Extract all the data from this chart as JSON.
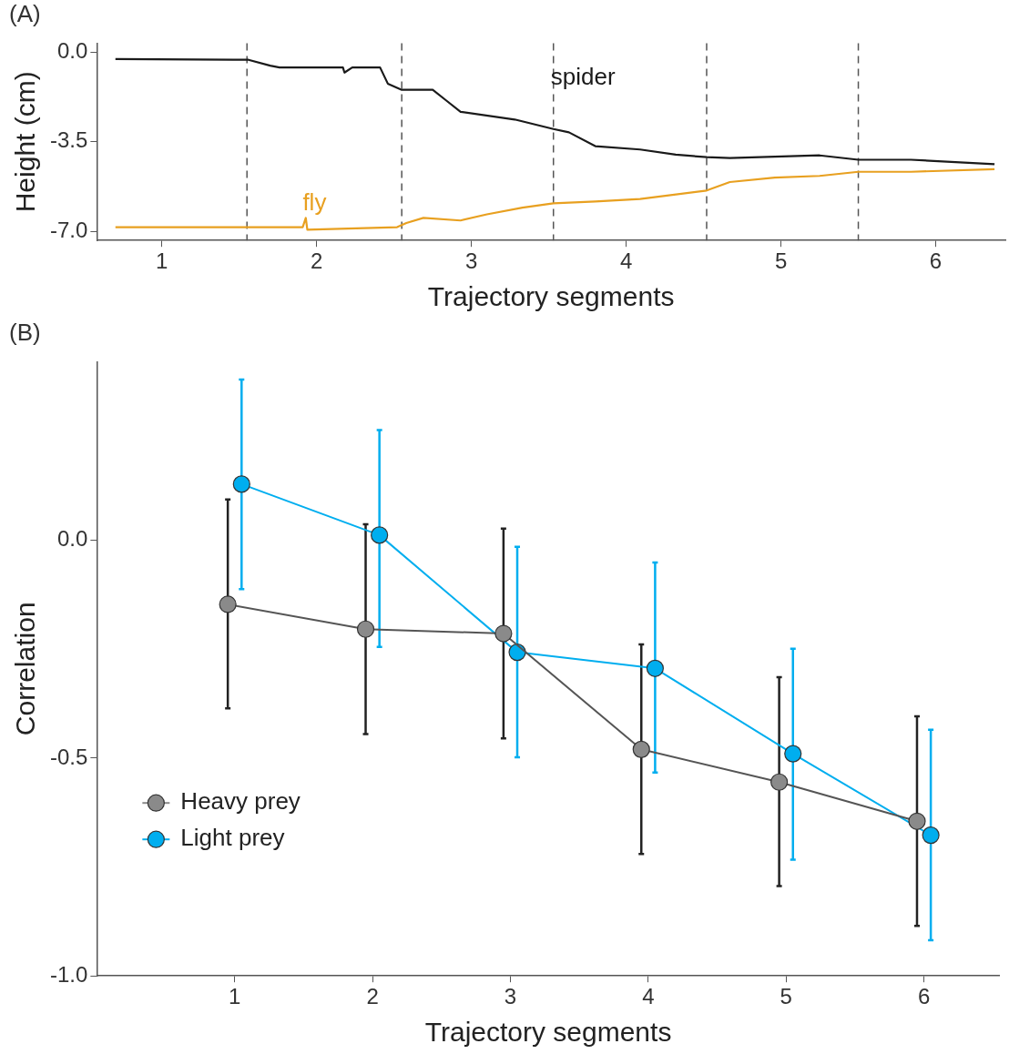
{
  "chart_data": [
    {
      "type": "line",
      "xlabel": "Trajectory segments",
      "ylabel": "Height (cm)",
      "annotations": [
        "(A)"
      ],
      "legend": false,
      "grid": false,
      "marker": "none",
      "xlim": [
        0.58,
        6.45
      ],
      "xticks": [
        1,
        2,
        3,
        4,
        5,
        6
      ],
      "ylim": [
        -7.35,
        0.35
      ],
      "yticks": [
        {
          "value": 0,
          "label": "0.0"
        },
        {
          "value": -3.5,
          "label": "-3.5"
        },
        {
          "value": -7,
          "label": "-7.0"
        }
      ],
      "ref_lines": [
        {
          "axis": "x",
          "value": 1.55,
          "color": "#555555",
          "line_style": "dashed"
        },
        {
          "axis": "x",
          "value": 2.55,
          "color": "#555555",
          "line_style": "dashed"
        },
        {
          "axis": "x",
          "value": 3.53,
          "color": "#555555",
          "line_style": "dashed"
        },
        {
          "axis": "x",
          "value": 4.52,
          "color": "#555555",
          "line_style": "dashed"
        },
        {
          "axis": "x",
          "value": 5.5,
          "color": "#555555",
          "line_style": "dashed"
        }
      ],
      "series": [
        {
          "name": "spider",
          "color": "#1a1a1a",
          "x": [
            0.7,
            1.56,
            1.7,
            1.76,
            2.17,
            2.18,
            2.23,
            2.41,
            2.46,
            2.55,
            2.75,
            2.84,
            2.93,
            3.28,
            3.53,
            3.63,
            3.8,
            4.09,
            4.32,
            4.52,
            4.67,
            5.25,
            5.5,
            5.84,
            6.38
          ],
          "values": [
            -0.27,
            -0.3,
            -0.53,
            -0.6,
            -0.6,
            -0.8,
            -0.6,
            -0.6,
            -1.23,
            -1.47,
            -1.47,
            -1.9,
            -2.33,
            -2.63,
            -3.0,
            -3.13,
            -3.67,
            -3.8,
            -4.0,
            -4.1,
            -4.13,
            -4.03,
            -4.2,
            -4.2,
            -4.37
          ]
        },
        {
          "name": "fly",
          "color": "#e8a020",
          "x": [
            0.7,
            1.56,
            1.91,
            1.93,
            1.94,
            2.52,
            2.58,
            2.69,
            2.93,
            3.1,
            3.33,
            3.53,
            3.8,
            4.09,
            4.52,
            4.67,
            4.96,
            5.25,
            5.5,
            5.84,
            6.38
          ],
          "values": [
            -6.83,
            -6.83,
            -6.83,
            -6.47,
            -6.93,
            -6.83,
            -6.67,
            -6.47,
            -6.57,
            -6.33,
            -6.07,
            -5.9,
            -5.83,
            -5.73,
            -5.4,
            -5.07,
            -4.9,
            -4.83,
            -4.67,
            -4.67,
            -4.57
          ]
        }
      ]
    },
    {
      "type": "line",
      "xlabel": "Trajectory segments",
      "ylabel": "Correlation",
      "annotations": [
        "(B)"
      ],
      "legend": "bottom left",
      "grid": false,
      "marker": "circle",
      "xlim": [
        0,
        6.55
      ],
      "xticks": [
        1,
        2,
        3,
        4,
        5,
        6
      ],
      "ylim": [
        -1,
        0.41
      ],
      "yticks": [
        {
          "value": 0,
          "label": "0.0"
        },
        {
          "value": -0.5,
          "label": "-0.5"
        },
        {
          "value": -1,
          "label": "-1.0"
        }
      ],
      "series": [
        {
          "name": "Heavy prey",
          "color": "#8a8a8a",
          "x": [
            0.95,
            1.95,
            2.95,
            3.95,
            4.95,
            5.95
          ],
          "values": [
            -0.147,
            -0.204,
            -0.214,
            -0.48,
            -0.555,
            -0.645
          ],
          "errors": [
            [
              -0.386,
              0.094
            ],
            [
              -0.445,
              0.037
            ],
            [
              -0.455,
              0.027
            ],
            [
              -0.72,
              -0.239
            ],
            [
              -0.794,
              -0.314
            ],
            [
              -0.885,
              -0.404
            ]
          ]
        },
        {
          "name": "Light prey",
          "color": "#00aeef",
          "x": [
            1.05,
            2.05,
            3.05,
            4.05,
            5.05,
            6.05
          ],
          "values": [
            0.129,
            0.012,
            -0.257,
            -0.294,
            -0.49,
            -0.677
          ],
          "errors": [
            [
              -0.112,
              0.369
            ],
            [
              -0.245,
              0.253
            ],
            [
              -0.498,
              -0.015
            ],
            [
              -0.533,
              -0.051
            ],
            [
              -0.733,
              -0.249
            ],
            [
              -0.918,
              -0.435
            ]
          ]
        }
      ]
    }
  ]
}
